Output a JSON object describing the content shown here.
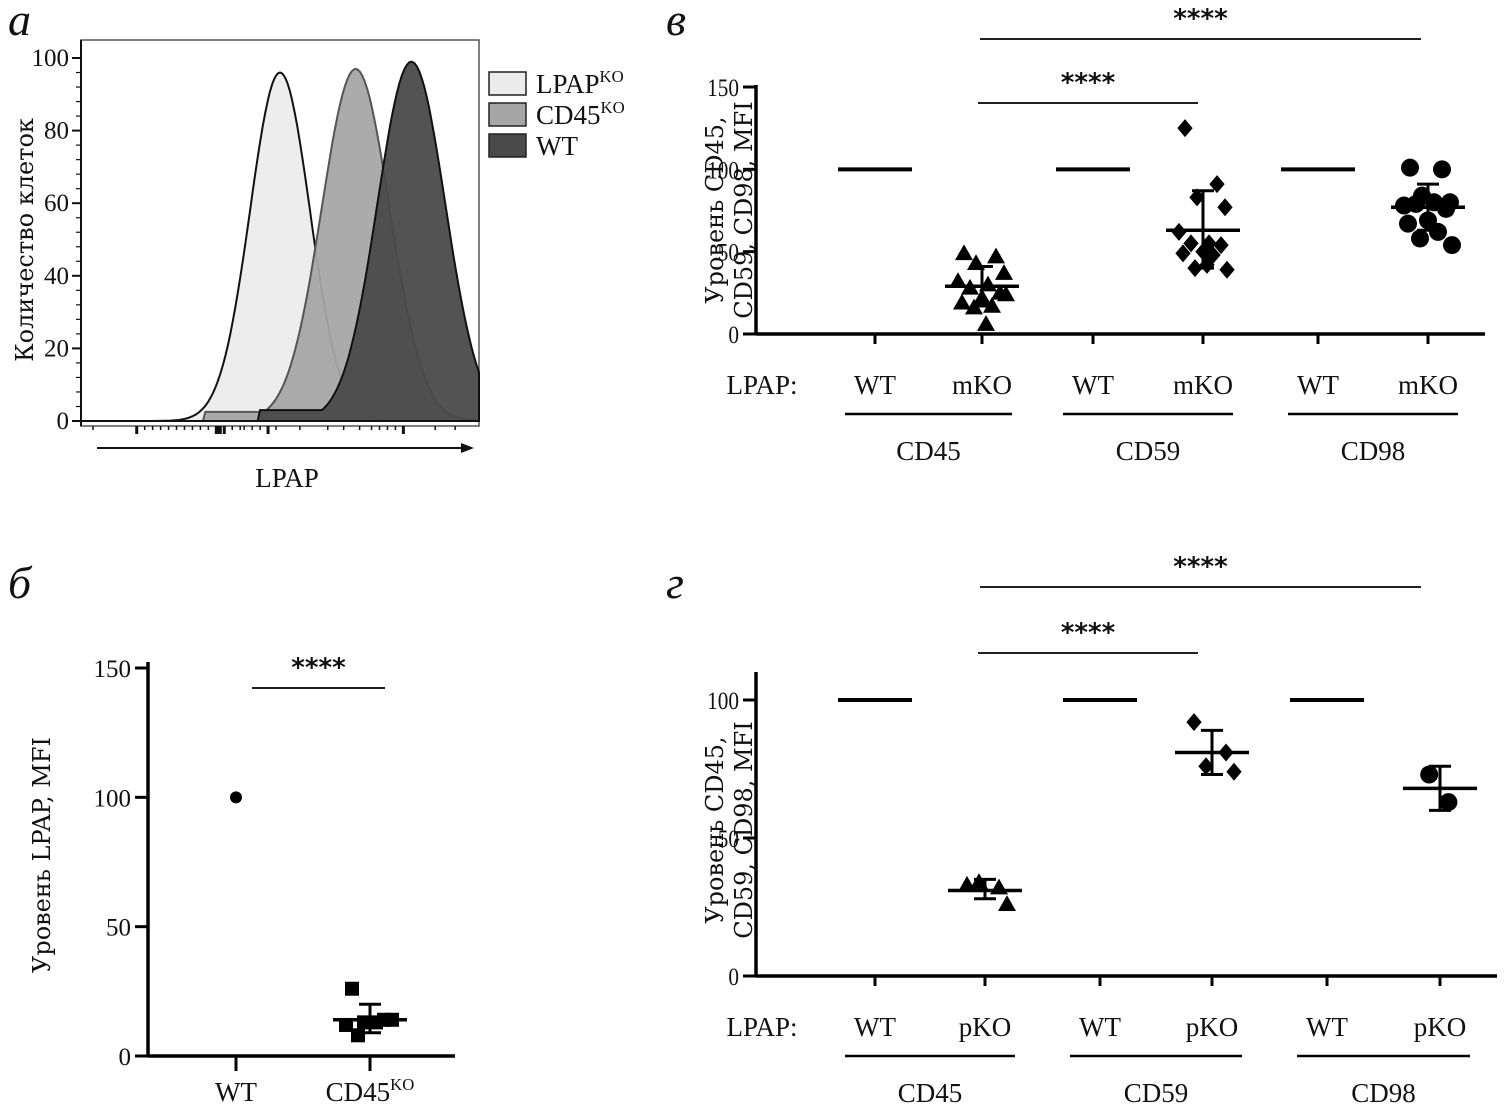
{
  "figure": {
    "panels": [
      "а",
      "б",
      "в",
      "г"
    ]
  },
  "chart_data": [
    {
      "id": "a",
      "panel_letter": "а",
      "type": "area",
      "title": "",
      "xlabel": "LPAP",
      "ylabel": "Количество клеток",
      "ylim": [
        0,
        100
      ],
      "yticks": [
        "0",
        "20",
        "40",
        "60",
        "80",
        "100"
      ],
      "x_scale": "log (flow cytometry, unlabeled)",
      "legend": {
        "placement": "right",
        "entries": [
          {
            "label": "LPAP",
            "sup": "KO",
            "color": "#ececec"
          },
          {
            "label": "CD45",
            "sup": "KO",
            "color": "#a6a6a6"
          },
          {
            "label": "WT",
            "sup": "",
            "color": "#4a4a4a"
          }
        ]
      },
      "series": [
        {
          "name": "LPAP KO",
          "color": "#ececec",
          "peak_position": 0.5,
          "peak": 96,
          "width": 0.075
        },
        {
          "name": "CD45 KO",
          "color": "#a6a6a6",
          "peak_position": 0.69,
          "peak": 97,
          "width": 0.085
        },
        {
          "name": "WT",
          "color": "#4a4a4a",
          "peak_position": 0.83,
          "peak": 99,
          "width": 0.085
        }
      ]
    },
    {
      "id": "b",
      "panel_letter": "б",
      "type": "scatter",
      "title": "",
      "xlabel": "",
      "ylabel": "Уровень LPAP, MFI",
      "ylim": [
        0,
        150
      ],
      "yticks": [
        "0",
        "50",
        "100",
        "150"
      ],
      "categories": [
        {
          "label": "WT",
          "sup": ""
        },
        {
          "label": "CD45",
          "sup": "KO"
        }
      ],
      "series": [
        {
          "category": 0,
          "marker": "circle",
          "values": [
            100
          ],
          "mean": 100,
          "sd": null
        },
        {
          "category": 1,
          "marker": "square",
          "values": [
            26,
            14,
            13,
            14,
            12,
            13,
            8
          ],
          "mean": 14,
          "sd": [
            9,
            20
          ]
        }
      ],
      "significance": [
        {
          "from": 0,
          "to": 1,
          "label": "****"
        }
      ]
    },
    {
      "id": "v",
      "panel_letter": "в",
      "type": "scatter",
      "title": "",
      "ylabel": "Уровень CD45, CD59, CD98, MFI",
      "ylim": [
        0,
        150
      ],
      "yticks": [
        "0",
        "50",
        "100",
        "150"
      ],
      "row_label": "LPAP:",
      "categories": [
        "WT",
        "mKO",
        "WT",
        "mKO",
        "WT",
        "mKO"
      ],
      "groups": [
        "CD45",
        "CD59",
        "CD98"
      ],
      "series": [
        {
          "category": 0,
          "marker": "line",
          "values": [
            100
          ],
          "mean": 100,
          "sd": null
        },
        {
          "category": 1,
          "marker": "triangle",
          "values": [
            49,
            47,
            43,
            37,
            32,
            30,
            28,
            25,
            22,
            19,
            17,
            16,
            24,
            6
          ],
          "mean": 29,
          "sd": [
            17,
            41
          ]
        },
        {
          "category": 2,
          "marker": "line",
          "values": [
            100
          ],
          "mean": 100,
          "sd": null
        },
        {
          "category": 3,
          "marker": "diamond",
          "values": [
            125,
            91,
            83,
            77,
            62,
            55,
            55,
            54,
            50,
            49,
            48,
            40,
            39,
            42
          ],
          "mean": 63,
          "sd": [
            40,
            87
          ]
        },
        {
          "category": 4,
          "marker": "line",
          "values": [
            100
          ],
          "mean": 100,
          "sd": null
        },
        {
          "category": 5,
          "marker": "circle",
          "values": [
            101,
            100,
            84,
            80,
            78,
            80,
            79,
            76,
            69,
            67,
            62,
            58,
            54
          ],
          "mean": 77,
          "sd": [
            63,
            91
          ]
        }
      ],
      "significance": [
        {
          "from": 1,
          "to": 3,
          "label": "****"
        },
        {
          "from": 1,
          "to": 5,
          "label": "****"
        }
      ]
    },
    {
      "id": "g",
      "panel_letter": "г",
      "type": "scatter",
      "title": "",
      "ylabel": "Уровень CD45, CD59, CD98, MFI",
      "ylim": [
        0,
        110
      ],
      "yticks": [
        "0",
        "50",
        "100"
      ],
      "row_label": "LPAP:",
      "categories": [
        "WT",
        "pKO",
        "WT",
        "pKO",
        "WT",
        "pKO"
      ],
      "groups": [
        "CD45",
        "CD59",
        "CD98"
      ],
      "series": [
        {
          "category": 0,
          "marker": "line",
          "values": [
            100
          ],
          "mean": 100,
          "sd": null
        },
        {
          "category": 1,
          "marker": "triangle",
          "values": [
            33,
            32,
            34,
            26
          ],
          "mean": 31,
          "sd": [
            28,
            35
          ]
        },
        {
          "category": 2,
          "marker": "line",
          "values": [
            100
          ],
          "mean": 100,
          "sd": null
        },
        {
          "category": 3,
          "marker": "diamond",
          "values": [
            92,
            81,
            76,
            74
          ],
          "mean": 81,
          "sd": [
            73,
            89
          ]
        },
        {
          "category": 4,
          "marker": "line",
          "values": [
            100
          ],
          "mean": 100,
          "sd": null
        },
        {
          "category": 5,
          "marker": "circle",
          "values": [
            73,
            63
          ],
          "mean": 68,
          "sd": [
            60,
            76
          ]
        }
      ],
      "significance": [
        {
          "from": 1,
          "to": 3,
          "label": "****"
        },
        {
          "from": 1,
          "to": 5,
          "label": "****"
        }
      ]
    }
  ]
}
